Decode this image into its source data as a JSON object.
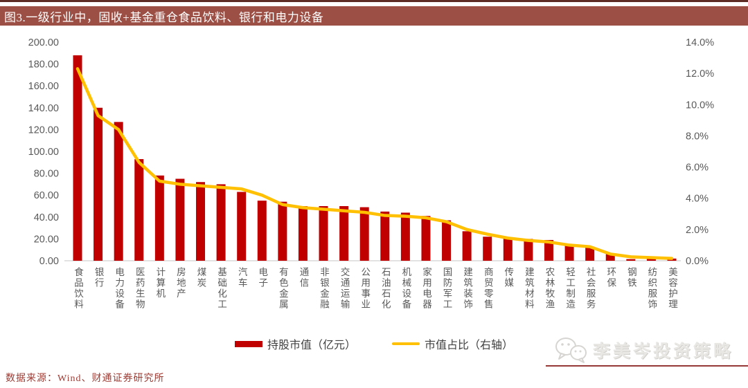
{
  "title": "图3.一级行业中，固收+基金重仓食品饮料、银行和电力设备",
  "source": "数据来源：Wind、财通证券研究所",
  "watermark": "李美岑投资策略",
  "colors": {
    "bar": "#C00000",
    "line": "#FFC000",
    "title_bg": "#9C4F45",
    "title_text": "#FFFFFF",
    "axis_text": "#595959",
    "baseline": "#D9D9D9",
    "source_text": "#9E3B33",
    "watermark_rule": "#953735"
  },
  "legend": [
    {
      "label": "持股市值（亿元）",
      "type": "bar"
    },
    {
      "label": "市值占比（右轴）",
      "type": "line"
    }
  ],
  "chart_data": {
    "type": "bar",
    "subtype": "bar+line dual axis",
    "categories": [
      "食品饮料",
      "银行",
      "电力设备",
      "医药生物",
      "计算机",
      "房地产",
      "煤炭",
      "基础化工",
      "汽车",
      "电子",
      "有色金属",
      "通信",
      "非银金融",
      "交通运输",
      "公用事业",
      "石油石化",
      "机械设备",
      "家用电器",
      "国防军工",
      "建筑装饰",
      "商贸零售",
      "传媒",
      "建筑材料",
      "农林牧渔",
      "轻工制造",
      "社会服务",
      "环保",
      "钢铁",
      "纺织服饰",
      "美容护理"
    ],
    "series": [
      {
        "name": "持股市值（亿元）",
        "type": "bar",
        "axis": "left",
        "values": [
          188,
          140,
          127,
          93,
          78,
          75,
          72,
          70,
          63,
          55,
          54,
          50,
          50,
          50,
          49,
          45,
          44,
          41,
          37,
          27,
          22,
          21,
          20,
          19,
          15,
          13,
          6,
          1.5,
          2,
          2
        ]
      },
      {
        "name": "市值占比（右轴）",
        "type": "line",
        "axis": "right",
        "values": [
          12.3,
          9.3,
          8.4,
          6.3,
          5.1,
          4.9,
          4.8,
          4.7,
          4.6,
          4.2,
          3.6,
          3.4,
          3.3,
          3.2,
          3.1,
          2.9,
          2.85,
          2.75,
          2.5,
          2.0,
          1.7,
          1.45,
          1.3,
          1.2,
          1.0,
          0.9,
          0.43,
          0.25,
          0.2,
          0.15
        ]
      }
    ],
    "left_axis": {
      "min": 0,
      "max": 200,
      "step": 20,
      "tick_labels": [
        "0.00",
        "20.00",
        "40.00",
        "60.00",
        "80.00",
        "100.00",
        "120.00",
        "140.00",
        "160.00",
        "180.00",
        "200.00"
      ]
    },
    "right_axis": {
      "min": 0,
      "max": 14,
      "step": 2,
      "tick_labels": [
        "0.0%",
        "2.0%",
        "4.0%",
        "6.0%",
        "8.0%",
        "10.0%",
        "12.0%",
        "14.0%"
      ]
    },
    "grid": false,
    "legend_position": "bottom"
  }
}
